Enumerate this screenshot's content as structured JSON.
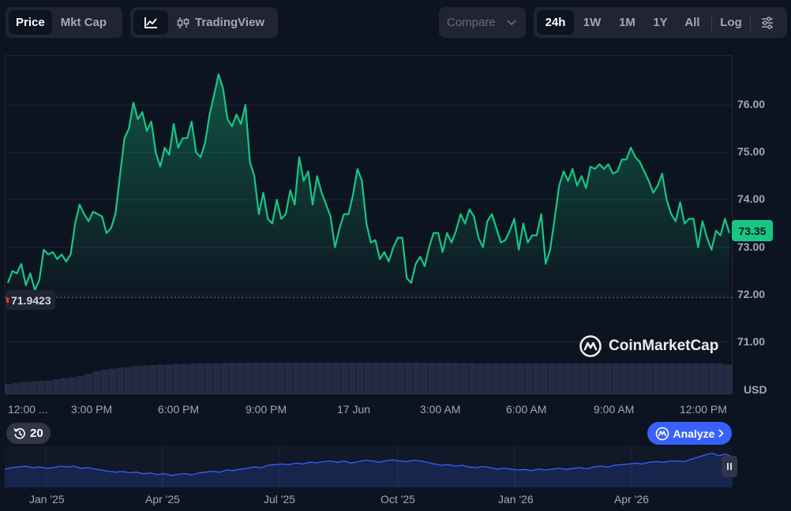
{
  "toolbar": {
    "view_tabs": [
      {
        "label": "Price",
        "active": true
      },
      {
        "label": "Mkt Cap",
        "active": false
      }
    ],
    "chart_style_icon": "line-chart-icon",
    "tradingview_icon": "candlestick-icon",
    "tradingview_label": "TradingView",
    "compare_label": "Compare",
    "ranges": [
      {
        "label": "24h",
        "active": true
      },
      {
        "label": "1W",
        "active": false
      },
      {
        "label": "1M",
        "active": false
      },
      {
        "label": "1Y",
        "active": false
      },
      {
        "label": "All",
        "active": false
      }
    ],
    "log_label": "Log",
    "settings_icon": "sliders-icon"
  },
  "chart_data": {
    "type": "area",
    "x_labels": [
      "12:00 ...",
      "3:00 PM",
      "6:00 PM",
      "9:00 PM",
      "17 Jun",
      "3:00 AM",
      "6:00 AM",
      "9:00 AM",
      "12:00 PM"
    ],
    "y_ticks": [
      "76.00",
      "75.00",
      "74.00",
      "73.00",
      "72.00",
      "71.00"
    ],
    "ylim": [
      69.9,
      77.05
    ],
    "unit": "USD",
    "open_value": "71.9423",
    "current_value": "73.35",
    "grid": true,
    "line_color": "#16c784",
    "values": [
      72.25,
      72.5,
      72.45,
      72.65,
      72.2,
      72.45,
      72.1,
      72.3,
      72.95,
      72.85,
      72.9,
      72.75,
      72.85,
      72.7,
      72.85,
      73.5,
      73.9,
      73.7,
      73.55,
      73.75,
      73.7,
      73.65,
      73.3,
      73.4,
      73.7,
      74.5,
      75.3,
      75.5,
      76.05,
      75.7,
      75.85,
      75.45,
      75.65,
      75.0,
      74.7,
      75.1,
      74.95,
      75.6,
      75.1,
      75.3,
      75.3,
      75.65,
      75.0,
      74.9,
      75.2,
      75.8,
      76.2,
      76.65,
      76.35,
      75.7,
      75.55,
      75.8,
      75.6,
      76.0,
      74.8,
      74.5,
      73.7,
      74.15,
      73.6,
      73.5,
      74.0,
      73.6,
      73.7,
      74.2,
      73.9,
      74.9,
      74.4,
      74.6,
      73.9,
      74.5,
      74.15,
      73.9,
      73.65,
      73.0,
      73.4,
      73.7,
      73.7,
      74.1,
      74.65,
      74.4,
      73.5,
      73.1,
      73.15,
      72.75,
      72.9,
      72.7,
      73.0,
      73.2,
      73.2,
      72.35,
      72.25,
      72.65,
      72.8,
      72.6,
      73.0,
      73.3,
      73.3,
      72.9,
      73.3,
      73.1,
      73.35,
      73.7,
      73.5,
      73.8,
      73.65,
      73.2,
      73.0,
      73.55,
      73.7,
      73.4,
      73.1,
      73.15,
      73.35,
      73.6,
      72.95,
      73.5,
      73.1,
      73.25,
      73.25,
      73.7,
      72.65,
      72.95,
      73.6,
      74.3,
      74.6,
      74.4,
      74.65,
      74.3,
      74.5,
      74.25,
      74.7,
      74.65,
      74.75,
      74.65,
      74.75,
      74.55,
      74.6,
      74.85,
      74.85,
      75.1,
      74.9,
      74.8,
      74.6,
      74.4,
      74.15,
      74.3,
      74.55,
      74.0,
      73.7,
      73.55,
      73.95,
      73.5,
      73.6,
      73.6,
      73.0,
      73.55,
      73.2,
      72.95,
      73.35,
      73.25,
      73.6,
      73.3
    ]
  },
  "volume_values": [
    0.2,
    0.22,
    0.24,
    0.25,
    0.26,
    0.27,
    0.29,
    0.31,
    0.33,
    0.36,
    0.4,
    0.45,
    0.48,
    0.5,
    0.52,
    0.53,
    0.55,
    0.56,
    0.57,
    0.58,
    0.58,
    0.59,
    0.59,
    0.6,
    0.6,
    0.6,
    0.6,
    0.61,
    0.61,
    0.61,
    0.61,
    0.62,
    0.62,
    0.62,
    0.62,
    0.62,
    0.62,
    0.62,
    0.62,
    0.62,
    0.62,
    0.62,
    0.62,
    0.62,
    0.62,
    0.62,
    0.62,
    0.62,
    0.62,
    0.62,
    0.62,
    0.62,
    0.61,
    0.61,
    0.61,
    0.61,
    0.61,
    0.61,
    0.61,
    0.6,
    0.6,
    0.6,
    0.6,
    0.6,
    0.6,
    0.6,
    0.6,
    0.6,
    0.6,
    0.6,
    0.6,
    0.6,
    0.6,
    0.6,
    0.6,
    0.6,
    0.6,
    0.6,
    0.6,
    0.6,
    0.6,
    0.6,
    0.6,
    0.6,
    0.6,
    0.6,
    0.6,
    0.6,
    0.6,
    0.6,
    0.58
  ],
  "open_marker_color": "#ea3943",
  "watermark": {
    "icon": "coinmarketcap-logo-icon",
    "text": "CoinMarketCap"
  },
  "history": {
    "icon": "history-icon",
    "label": "20"
  },
  "analyze": {
    "icon": "ai-analyze-icon",
    "label": "Analyze",
    "chevron": "chevron-right-icon"
  },
  "navigator": {
    "x_labels": [
      "Jan '25",
      "Apr '25",
      "Jul '25",
      "Oct '25",
      "Jan '26",
      "Apr '26"
    ],
    "values": [
      0.45,
      0.5,
      0.52,
      0.55,
      0.5,
      0.52,
      0.48,
      0.5,
      0.55,
      0.52,
      0.55,
      0.48,
      0.5,
      0.45,
      0.42,
      0.38,
      0.35,
      0.37,
      0.33,
      0.35,
      0.3,
      0.32,
      0.27,
      0.3,
      0.24,
      0.28,
      0.3,
      0.26,
      0.32,
      0.35,
      0.38,
      0.35,
      0.42,
      0.4,
      0.45,
      0.48,
      0.52,
      0.5,
      0.58,
      0.6,
      0.62,
      0.6,
      0.65,
      0.62,
      0.68,
      0.66,
      0.7,
      0.72,
      0.68,
      0.72,
      0.65,
      0.7,
      0.75,
      0.72,
      0.68,
      0.73,
      0.76,
      0.72,
      0.7,
      0.75,
      0.72,
      0.68,
      0.62,
      0.58,
      0.6,
      0.55,
      0.58,
      0.52,
      0.5,
      0.54,
      0.5,
      0.45,
      0.48,
      0.45,
      0.42,
      0.44,
      0.4,
      0.45,
      0.42,
      0.45,
      0.48,
      0.44,
      0.48,
      0.5,
      0.46,
      0.52,
      0.55,
      0.52,
      0.58,
      0.6,
      0.62,
      0.65,
      0.62,
      0.68,
      0.7,
      0.68,
      0.72,
      0.72,
      0.7,
      0.78,
      0.85,
      0.92,
      0.98,
      0.9,
      0.95,
      0.85
    ]
  }
}
